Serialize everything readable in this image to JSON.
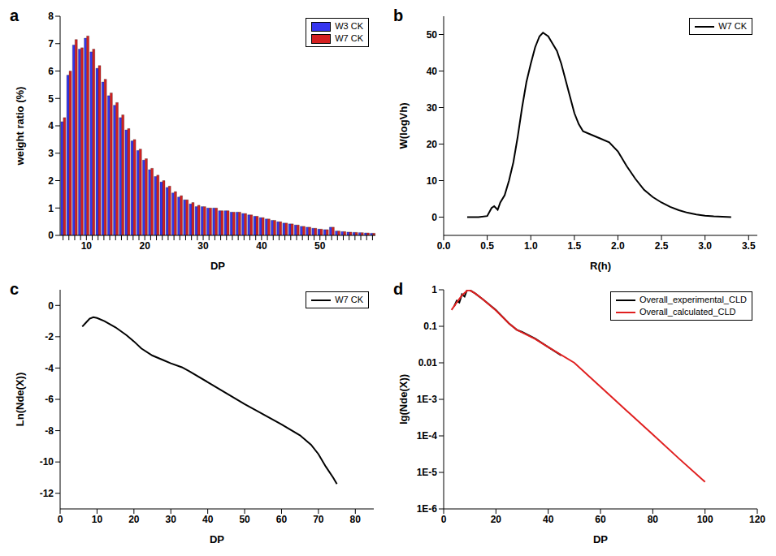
{
  "chart_data": [
    {
      "type": "bar",
      "title": "a",
      "x_label": "DP",
      "y_label": "weight ratio (%)",
      "legend": "upper right",
      "categories": [
        null,
        null,
        null,
        null,
        10,
        null,
        null,
        null,
        null,
        null,
        null,
        null,
        null,
        null,
        20,
        null,
        null,
        null,
        null,
        null,
        null,
        null,
        null,
        null,
        30,
        null,
        null,
        null,
        null,
        null,
        null,
        null,
        null,
        null,
        40,
        null,
        null,
        null,
        null,
        null,
        null,
        null,
        null,
        null,
        50,
        null,
        null,
        null,
        null,
        null,
        null,
        null,
        null,
        null
      ],
      "series": [
        {
          "name": "W3 CK",
          "color": "#3535f0",
          "values": [
            4.15,
            5.85,
            6.95,
            6.8,
            7.2,
            6.7,
            6.1,
            5.6,
            5.1,
            4.75,
            4.3,
            3.85,
            3.45,
            3.1,
            2.75,
            2.4,
            2.15,
            1.95,
            1.75,
            1.55,
            1.4,
            1.3,
            1.15,
            1.05,
            1.05,
            1.0,
            1.0,
            0.9,
            0.9,
            0.85,
            0.85,
            0.8,
            0.75,
            0.7,
            0.65,
            0.6,
            0.55,
            0.5,
            0.45,
            0.42,
            0.38,
            0.33,
            0.3,
            0.26,
            0.23,
            0.21,
            0.3,
            0.16,
            0.14,
            0.12,
            0.11,
            0.1,
            0.09,
            0.08
          ]
        },
        {
          "name": "W7 CK",
          "color": "#d42020",
          "values": [
            4.3,
            6.0,
            7.15,
            6.85,
            7.28,
            6.8,
            6.2,
            5.7,
            5.2,
            4.85,
            4.4,
            3.9,
            3.5,
            3.15,
            2.8,
            2.45,
            2.2,
            2.0,
            1.8,
            1.6,
            1.45,
            1.3,
            1.2,
            1.1,
            1.05,
            1.0,
            1.0,
            0.9,
            0.9,
            0.85,
            0.85,
            0.8,
            0.75,
            0.7,
            0.65,
            0.6,
            0.55,
            0.5,
            0.45,
            0.42,
            0.38,
            0.33,
            0.3,
            0.26,
            0.23,
            0.21,
            0.3,
            0.16,
            0.14,
            0.12,
            0.11,
            0.1,
            0.09,
            0.08
          ]
        }
      ],
      "ylim": [
        0,
        8
      ],
      "yticks": [
        0,
        1,
        2,
        3,
        4,
        5,
        6,
        7,
        8
      ]
    },
    {
      "type": "line",
      "title": "b",
      "x_label": "R(h)",
      "y_label": "W(logVh)",
      "legend": "upper right",
      "series": [
        {
          "name": "W7 CK",
          "color": "#000000",
          "x": [
            0.27,
            0.4,
            0.5,
            0.55,
            0.58,
            0.62,
            0.65,
            0.7,
            0.75,
            0.8,
            0.85,
            0.9,
            0.95,
            1.0,
            1.05,
            1.1,
            1.14,
            1.2,
            1.25,
            1.3,
            1.35,
            1.4,
            1.45,
            1.5,
            1.55,
            1.6,
            1.7,
            1.8,
            1.9,
            2.0,
            2.1,
            2.2,
            2.3,
            2.4,
            2.5,
            2.6,
            2.7,
            2.8,
            2.9,
            3.0,
            3.1,
            3.2,
            3.3
          ],
          "values": [
            0,
            0,
            0.3,
            2.5,
            3,
            2,
            4,
            6,
            10,
            15,
            22,
            30,
            37,
            42,
            46.5,
            49.5,
            50.5,
            49.5,
            47.5,
            45.5,
            42,
            37.5,
            33,
            28.5,
            25.5,
            23.5,
            22.5,
            21.5,
            20.5,
            18,
            14,
            10.5,
            7.5,
            5.5,
            4,
            2.8,
            1.9,
            1.2,
            0.7,
            0.4,
            0.2,
            0.1,
            0
          ]
        }
      ],
      "xlim": [
        0,
        3.6
      ],
      "xticks": [
        {
          "value": 0,
          "label": "0.0"
        },
        0.5,
        {
          "value": 1,
          "label": "1.0"
        },
        1.5,
        {
          "value": 2,
          "label": "2.0"
        },
        2.5,
        {
          "value": 3,
          "label": "3.0"
        },
        3.5
      ],
      "ylim": [
        -5,
        55
      ],
      "yticks": [
        0,
        10,
        20,
        30,
        40,
        50
      ]
    },
    {
      "type": "line",
      "title": "c",
      "x_label": "DP",
      "y_label": "Ln(Nde(X))",
      "legend": "upper right",
      "series": [
        {
          "name": "W7 CK",
          "color": "#000000",
          "x": [
            6,
            7,
            8,
            9,
            10,
            12,
            15,
            18,
            20,
            22,
            25,
            28,
            30,
            33,
            35,
            40,
            45,
            50,
            55,
            60,
            65,
            68,
            70,
            72,
            74,
            75
          ],
          "values": [
            -1.35,
            -1.1,
            -0.85,
            -0.75,
            -0.8,
            -1.0,
            -1.4,
            -1.9,
            -2.3,
            -2.75,
            -3.2,
            -3.5,
            -3.7,
            -3.95,
            -4.2,
            -4.9,
            -5.6,
            -6.3,
            -6.95,
            -7.6,
            -8.3,
            -8.9,
            -9.5,
            -10.3,
            -11.0,
            -11.4
          ]
        }
      ],
      "xlim": [
        0,
        85
      ],
      "xticks": [
        0,
        10,
        20,
        30,
        40,
        50,
        60,
        70,
        80
      ],
      "ylim": [
        -13,
        1
      ],
      "yticks": [
        -12,
        -10,
        -8,
        -6,
        -4,
        -2,
        0
      ]
    },
    {
      "type": "line",
      "title": "d",
      "x_label": "DP",
      "y_label": "lg(Nde(X))",
      "legend": "upper right",
      "log": "y",
      "series": [
        {
          "name": "Overall_experimental_CLD",
          "color": "#000000",
          "x": [
            4,
            5,
            6,
            7,
            8,
            9,
            10,
            12,
            15,
            20,
            25,
            28,
            30,
            35,
            40,
            45
          ],
          "values": [
            0.35,
            0.5,
            0.45,
            0.75,
            0.65,
            1.0,
            0.98,
            0.8,
            0.55,
            0.28,
            0.12,
            0.08,
            0.07,
            0.046,
            0.027,
            0.016
          ]
        },
        {
          "name": "Overall_calculated_CLD",
          "color": "#e02020",
          "x": [
            3,
            5,
            7,
            9,
            10,
            12,
            15,
            20,
            25,
            28,
            30,
            35,
            40,
            50,
            60,
            70,
            80,
            90,
            100
          ],
          "values": [
            0.28,
            0.45,
            0.7,
            0.95,
            0.97,
            0.8,
            0.55,
            0.27,
            0.12,
            0.08,
            0.068,
            0.045,
            0.027,
            0.01,
            0.0022,
            0.00049,
            0.00011,
            2.4e-05,
            5.5e-06
          ]
        }
      ],
      "xlim": [
        0,
        120
      ],
      "xticks": [
        0,
        20,
        40,
        60,
        80,
        100,
        120
      ],
      "ylim": [
        1e-06,
        1
      ],
      "yticks": [
        {
          "value": 1e-06,
          "label": "1E-6"
        },
        {
          "value": 1e-05,
          "label": "1E-5"
        },
        {
          "value": 0.0001,
          "label": "1E-4"
        },
        {
          "value": 0.001,
          "label": "1E-3"
        },
        0.01,
        0.1,
        1
      ]
    }
  ]
}
